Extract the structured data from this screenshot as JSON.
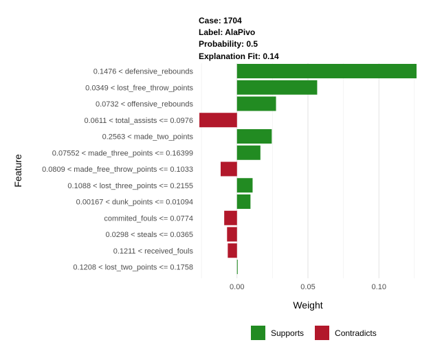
{
  "header": {
    "case": "Case: 1704",
    "label": "Label: AlaPivo",
    "probability": "Probability: 0.5",
    "fit": "Explanation Fit: 0.14"
  },
  "chart_data": {
    "type": "bar",
    "orientation": "horizontal",
    "xlabel": "Weight",
    "ylabel": "Feature",
    "xlim": [
      -0.027,
      0.127
    ],
    "xticks": [
      0.0,
      0.05,
      0.1
    ],
    "xtick_labels": [
      "0.00",
      "0.05",
      "0.10"
    ],
    "grid": true,
    "legend_position": "bottom",
    "colors": {
      "Supports": "#228B22",
      "Contradicts": "#B2182B"
    },
    "categories": [
      "0.1476 < defensive_rebounds",
      "0.0349 < lost_free_throw_points",
      "0.0732 < offensive_rebounds",
      "0.0611 < total_assists <= 0.0976",
      "0.2563 < made_two_points",
      "0.07552 < made_three_points <= 0.16399",
      "0.0809 < made_free_throw_points <= 0.1033",
      "0.1088 < lost_three_points <= 0.2155",
      "0.00167 < dunk_points <= 0.01094",
      "commited_fouls <= 0.0774",
      "0.0298 < steals <= 0.0365",
      "0.1211 < received_fouls",
      "0.1208 < lost_two_points <= 0.1758"
    ],
    "values": [
      0.1265,
      0.0565,
      0.0275,
      -0.0265,
      0.0245,
      0.0165,
      -0.0115,
      0.011,
      0.0095,
      -0.009,
      -0.007,
      -0.0065,
      0.0005
    ],
    "series_types": [
      "Supports",
      "Supports",
      "Supports",
      "Contradicts",
      "Supports",
      "Supports",
      "Contradicts",
      "Supports",
      "Supports",
      "Contradicts",
      "Contradicts",
      "Contradicts",
      "Supports"
    ]
  },
  "legend": [
    {
      "label": "Supports",
      "color": "#228B22"
    },
    {
      "label": "Contradicts",
      "color": "#B2182B"
    }
  ]
}
